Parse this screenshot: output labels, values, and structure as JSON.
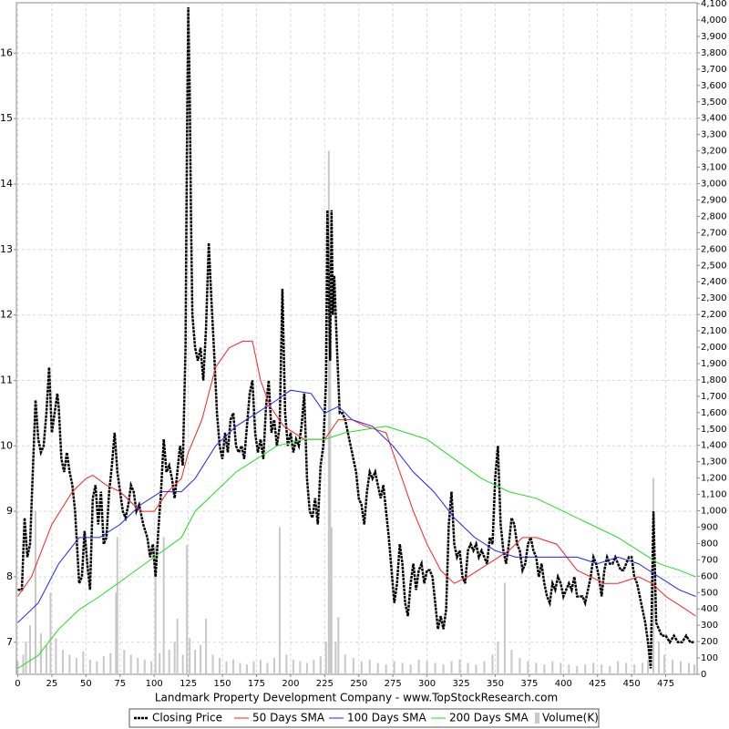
{
  "chart_data": {
    "type": "line",
    "x_label": "Landmark Property Development Company - www.TopStockResearch.com",
    "xlim": [
      -1,
      498
    ],
    "xticks": [
      0,
      25,
      50,
      75,
      100,
      125,
      150,
      175,
      200,
      225,
      250,
      275,
      300,
      325,
      350,
      375,
      400,
      425,
      450,
      475
    ],
    "ylim": [
      6.51,
      16.77
    ],
    "yticks": [
      7,
      8,
      9,
      10,
      11,
      12,
      13,
      14,
      15,
      16
    ],
    "y2lim": [
      0,
      4106
    ],
    "y2ticks": [
      0,
      100,
      200,
      300,
      400,
      500,
      600,
      700,
      800,
      900,
      {
        "value": 1000,
        "label": "1,000"
      },
      {
        "value": 1100,
        "label": "1,100"
      },
      {
        "value": 1200,
        "label": "1,200"
      },
      {
        "value": 1300,
        "label": "1,300"
      },
      {
        "value": 1400,
        "label": "1,400"
      },
      {
        "value": 1500,
        "label": "1,500"
      },
      {
        "value": 1600,
        "label": "1,600"
      },
      {
        "value": 1700,
        "label": "1,700"
      },
      {
        "value": 1800,
        "label": "1,800"
      },
      {
        "value": 1900,
        "label": "1,900"
      },
      {
        "value": 2000,
        "label": "2,000"
      },
      {
        "value": 2100,
        "label": "2,100"
      },
      {
        "value": 2200,
        "label": "2,200"
      },
      {
        "value": 2300,
        "label": "2,300"
      },
      {
        "value": 2400,
        "label": "2,400"
      },
      {
        "value": 2500,
        "label": "2,500"
      },
      {
        "value": 2600,
        "label": "2,600"
      },
      {
        "value": 2700,
        "label": "2,700"
      },
      {
        "value": 2800,
        "label": "2,800"
      },
      {
        "value": 2900,
        "label": "2,900"
      },
      {
        "value": 3000,
        "label": "3,000"
      },
      {
        "value": 3100,
        "label": "3,100"
      },
      {
        "value": 3200,
        "label": "3,200"
      },
      {
        "value": 3300,
        "label": "3,300"
      },
      {
        "value": 3400,
        "label": "3,400"
      },
      {
        "value": 3500,
        "label": "3,500"
      },
      {
        "value": 3600,
        "label": "3,600"
      },
      {
        "value": 3700,
        "label": "3,700"
      },
      {
        "value": 3800,
        "label": "3,800"
      },
      {
        "value": 3900,
        "label": "3,900"
      },
      {
        "value": 4000,
        "label": "4,000"
      },
      {
        "value": 4100,
        "label": "4,100"
      }
    ],
    "grid": true,
    "series": [
      {
        "name": "Closing Price",
        "color": "#000000",
        "dashed": true,
        "x": [
          0,
          3,
          5,
          7,
          9,
          11,
          13,
          15,
          17,
          19,
          21,
          23,
          25,
          27,
          29,
          30,
          32,
          34,
          36,
          38,
          40,
          42,
          45,
          47,
          49,
          51,
          53,
          55,
          57,
          59,
          61,
          63,
          65,
          67,
          69,
          71,
          73,
          75,
          77,
          79,
          81,
          83,
          85,
          87,
          89,
          92,
          95,
          97,
          99,
          101,
          103,
          105,
          107,
          109,
          111,
          113,
          115,
          117,
          119,
          121,
          123,
          124,
          125,
          126,
          127,
          128,
          130,
          132,
          134,
          136,
          138,
          140,
          142,
          144,
          146,
          148,
          150,
          152,
          154,
          156,
          158,
          160,
          162,
          164,
          166,
          168,
          170,
          172,
          174,
          176,
          178,
          180,
          182,
          184,
          186,
          188,
          190,
          192,
          194,
          196,
          198,
          200,
          202,
          204,
          206,
          208,
          210,
          212,
          214,
          216,
          218,
          220,
          222,
          224,
          226,
          227,
          228,
          229,
          230,
          231,
          232,
          234,
          236,
          238,
          240,
          242,
          244,
          246,
          248,
          250,
          252,
          254,
          256,
          258,
          260,
          262,
          264,
          266,
          268,
          270,
          272,
          274,
          276,
          278,
          280,
          282,
          284,
          286,
          288,
          290,
          292,
          294,
          296,
          298,
          300,
          302,
          304,
          306,
          308,
          310,
          312,
          314,
          316,
          318,
          320,
          322,
          324,
          326,
          328,
          330,
          332,
          334,
          336,
          338,
          340,
          342,
          344,
          346,
          348,
          350,
          352,
          354,
          356,
          358,
          360,
          362,
          364,
          366,
          368,
          370,
          372,
          374,
          376,
          378,
          380,
          382,
          384,
          386,
          388,
          390,
          392,
          394,
          396,
          398,
          400,
          402,
          404,
          406,
          408,
          410,
          412,
          414,
          416,
          418,
          420,
          422,
          424,
          426,
          428,
          430,
          432,
          434,
          436,
          438,
          440,
          442,
          444,
          446,
          448,
          450,
          452,
          454,
          456,
          458,
          460,
          462,
          464,
          466,
          468,
          470,
          472,
          475,
          478,
          481,
          484,
          487,
          490,
          493,
          496
        ],
        "values": [
          7.8,
          7.8,
          8.9,
          8.3,
          8.5,
          9.6,
          10.7,
          10.1,
          9.9,
          10.0,
          10.5,
          11.2,
          10.2,
          10.5,
          10.8,
          10.6,
          9.8,
          9.6,
          9.9,
          9.6,
          9.4,
          9.0,
          7.9,
          8.0,
          8.7,
          8.2,
          7.8,
          9.2,
          9.4,
          8.8,
          9.3,
          8.5,
          8.6,
          9.3,
          9.7,
          10.2,
          9.6,
          9.3,
          9.0,
          8.9,
          9.1,
          9.4,
          9.3,
          9.0,
          9.1,
          8.8,
          8.6,
          8.3,
          8.5,
          8.0,
          8.7,
          9.3,
          10.1,
          9.6,
          9.7,
          9.5,
          9.2,
          9.6,
          10.0,
          9.7,
          11.5,
          14.5,
          16.7,
          15.5,
          13.5,
          12.0,
          11.5,
          11.3,
          11.5,
          11.0,
          11.8,
          13.1,
          12.2,
          11.4,
          10.5,
          10.0,
          9.8,
          10.2,
          9.9,
          10.4,
          10.5,
          10.0,
          9.9,
          10.0,
          9.8,
          10.3,
          10.8,
          11.0,
          10.2,
          9.9,
          10.1,
          9.8,
          10.6,
          11.0,
          10.2,
          10.4,
          10.0,
          10.3,
          12.4,
          10.5,
          10.0,
          10.2,
          9.9,
          10.1,
          10.0,
          10.3,
          10.8,
          9.5,
          9.0,
          8.9,
          9.2,
          8.8,
          9.7,
          10.0,
          11.0,
          13.6,
          12.5,
          11.3,
          13.6,
          12.0,
          12.6,
          11.5,
          10.5,
          10.5,
          10.4,
          10.2,
          10.0,
          9.8,
          9.6,
          9.2,
          9.1,
          8.8,
          9.3,
          9.6,
          9.5,
          9.6,
          9.4,
          9.2,
          9.4,
          9.0,
          8.6,
          8.1,
          7.6,
          7.9,
          8.5,
          8.2,
          7.6,
          7.4,
          7.9,
          8.2,
          7.8,
          8.1,
          8.2,
          7.9,
          8.1,
          8.1,
          8.0,
          7.6,
          7.2,
          7.4,
          7.2,
          7.5,
          8.8,
          9.3,
          8.5,
          8.3,
          8.4,
          8.0,
          7.9,
          8.4,
          8.5,
          8.4,
          8.5,
          8.3,
          8.4,
          8.3,
          8.2,
          8.6,
          8.5,
          9.5,
          10.0,
          8.8,
          8.4,
          8.2,
          8.5,
          8.9,
          8.8,
          8.5,
          8.4,
          8.1,
          8.2,
          8.5,
          8.6,
          8.4,
          8.3,
          8.0,
          8.2,
          7.9,
          7.7,
          7.6,
          7.9,
          7.8,
          8.0,
          7.9,
          7.7,
          7.8,
          7.9,
          7.8,
          8.0,
          7.7,
          7.7,
          7.7,
          7.6,
          7.8,
          8.0,
          8.3,
          8.2,
          8.0,
          7.7,
          8.1,
          8.3,
          8.2,
          8.2,
          8.3,
          8.2,
          8.1,
          8.1,
          8.2,
          8.3,
          8.3,
          8.0,
          7.9,
          7.7,
          7.5,
          7.3,
          7.0,
          6.6,
          9.0,
          7.3,
          7.2,
          7.1,
          7.1,
          7.0,
          7.1,
          7.0,
          7.0,
          7.1,
          7.0,
          7.0
        ]
      },
      {
        "name": "50 Days SMA",
        "color": "#ff2020",
        "x": [
          0,
          10,
          25,
          40,
          50,
          55,
          65,
          75,
          90,
          100,
          110,
          120,
          125,
          135,
          145,
          155,
          165,
          172,
          178,
          185,
          195,
          210,
          225,
          235,
          245,
          255,
          270,
          280,
          290,
          300,
          310,
          320,
          330,
          345,
          360,
          370,
          380,
          395,
          410,
          420,
          430,
          440,
          455,
          465,
          475,
          490,
          497
        ],
        "values": [
          7.7,
          8.0,
          8.8,
          9.3,
          9.5,
          9.55,
          9.4,
          9.3,
          9.0,
          9.0,
          9.3,
          9.5,
          9.9,
          10.4,
          11.2,
          11.5,
          11.6,
          11.6,
          11.0,
          10.6,
          10.3,
          10.1,
          10.1,
          10.4,
          10.4,
          10.3,
          10.2,
          9.6,
          9.0,
          8.5,
          8.1,
          7.9,
          8.0,
          8.2,
          8.4,
          8.6,
          8.6,
          8.5,
          8.1,
          8.0,
          7.9,
          7.9,
          8.0,
          7.9,
          7.7,
          7.5,
          7.4
        ]
      },
      {
        "name": "100 Days SMA",
        "color": "#2020ff",
        "x": [
          0,
          15,
          30,
          45,
          60,
          75,
          90,
          105,
          120,
          130,
          145,
          160,
          175,
          190,
          200,
          215,
          225,
          235,
          245,
          260,
          275,
          290,
          305,
          320,
          335,
          350,
          365,
          380,
          395,
          410,
          425,
          440,
          455,
          470,
          485,
          497
        ],
        "values": [
          7.3,
          7.6,
          8.2,
          8.6,
          8.6,
          8.8,
          9.1,
          9.3,
          9.3,
          9.5,
          10.0,
          10.3,
          10.5,
          10.7,
          10.85,
          10.8,
          10.5,
          10.6,
          10.4,
          10.3,
          10.0,
          9.6,
          9.3,
          8.9,
          8.6,
          8.4,
          8.3,
          8.3,
          8.3,
          8.3,
          8.2,
          8.3,
          8.2,
          8.0,
          7.8,
          7.7
        ]
      },
      {
        "name": "200 Days SMA",
        "color": "#20e020",
        "x": [
          0,
          15,
          30,
          45,
          60,
          80,
          100,
          120,
          130,
          145,
          160,
          175,
          190,
          210,
          225,
          240,
          255,
          270,
          285,
          300,
          320,
          340,
          360,
          380,
          400,
          420,
          440,
          455,
          470,
          485,
          497
        ],
        "values": [
          6.6,
          6.8,
          7.2,
          7.5,
          7.7,
          8.0,
          8.3,
          8.6,
          9.0,
          9.3,
          9.6,
          9.8,
          10.0,
          10.1,
          10.1,
          10.2,
          10.25,
          10.3,
          10.2,
          10.1,
          9.8,
          9.5,
          9.3,
          9.2,
          9.0,
          8.8,
          8.6,
          8.4,
          8.2,
          8.1,
          8.0
        ]
      },
      {
        "name": "Volume(K)",
        "color": "#c8c8c8",
        "axis": "y2",
        "bars": true,
        "x": [
          0,
          4,
          6,
          9,
          13,
          17,
          21,
          24,
          28,
          33,
          38,
          43,
          48,
          53,
          58,
          63,
          68,
          72,
          73,
          78,
          83,
          88,
          93,
          98,
          101,
          104,
          107,
          111,
          115,
          117,
          121,
          124,
          126,
          130,
          134,
          138,
          143,
          148,
          153,
          158,
          163,
          168,
          173,
          178,
          183,
          188,
          192,
          197,
          202,
          207,
          212,
          217,
          222,
          226,
          228,
          229,
          230,
          233,
          235,
          240,
          246,
          252,
          258,
          264,
          270,
          276,
          282,
          288,
          294,
          300,
          306,
          312,
          318,
          324,
          330,
          336,
          342,
          348,
          352,
          357,
          362,
          368,
          374,
          380,
          386,
          392,
          398,
          404,
          410,
          416,
          422,
          428,
          434,
          440,
          446,
          452,
          458,
          462,
          466,
          470,
          474,
          480,
          486,
          492,
          496
        ],
        "values": [
          80,
          120,
          200,
          300,
          1000,
          250,
          180,
          500,
          220,
          150,
          120,
          100,
          140,
          90,
          80,
          110,
          130,
          500,
          840,
          150,
          120,
          100,
          90,
          80,
          780,
          130,
          840,
          150,
          200,
          340,
          120,
          790,
          220,
          150,
          180,
          340,
          120,
          100,
          80,
          90,
          70,
          60,
          80,
          90,
          70,
          100,
          900,
          120,
          90,
          80,
          70,
          90,
          110,
          200,
          3200,
          2000,
          900,
          200,
          350,
          120,
          100,
          80,
          90,
          70,
          60,
          80,
          70,
          60,
          90,
          80,
          70,
          60,
          80,
          90,
          70,
          60,
          80,
          120,
          200,
          560,
          150,
          100,
          80,
          70,
          60,
          80,
          70,
          60,
          50,
          60,
          70,
          60,
          50,
          80,
          70,
          60,
          70,
          90,
          1200,
          200,
          120,
          90,
          80,
          70,
          60
        ]
      }
    ]
  }
}
